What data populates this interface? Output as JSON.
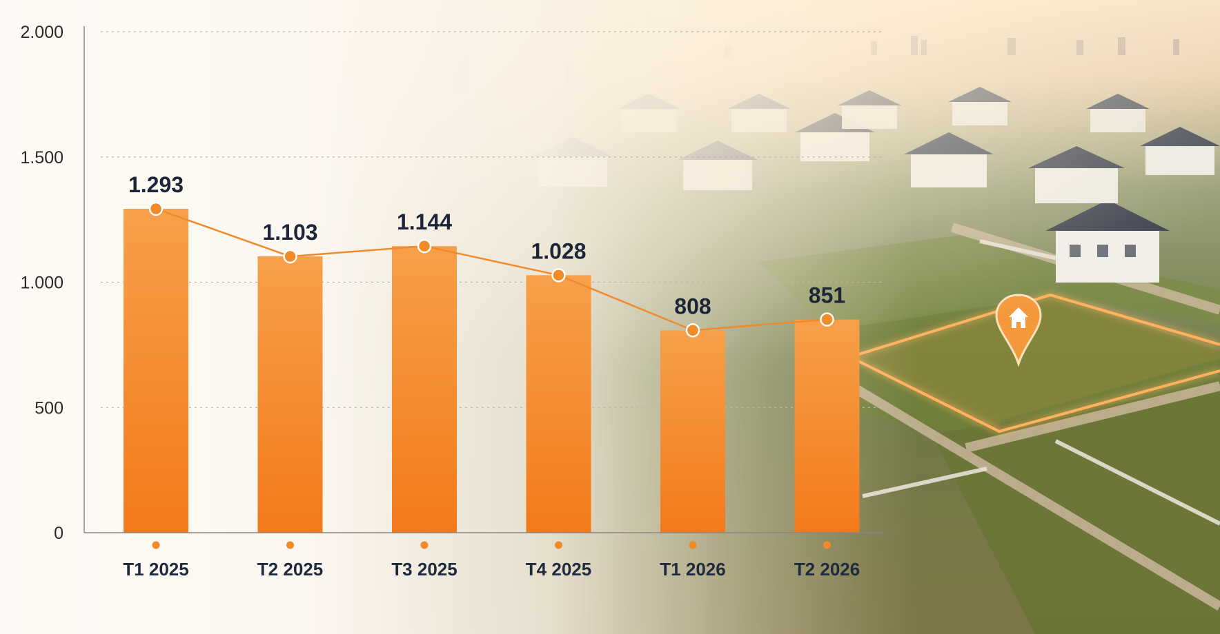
{
  "chart_data": {
    "type": "bar",
    "categories": [
      "T1 2025",
      "T2 2025",
      "T3 2025",
      "T4 2025",
      "T1 2026",
      "T2 2026"
    ],
    "values": [
      1293,
      1103,
      1144,
      1028,
      808,
      851
    ],
    "value_labels": [
      "1.293",
      "1.103",
      "1.144",
      "1.028",
      "808",
      "851"
    ],
    "overlay": "line connecting bar tops with point markers",
    "ylim": [
      0,
      2000
    ],
    "yticks": [
      0,
      500,
      1000,
      1500,
      2000
    ],
    "ytick_labels": [
      "0",
      "500",
      "1.000",
      "1.500",
      "2.000"
    ],
    "grid": "dashed horizontal",
    "legend": "none",
    "colors": {
      "bar_top": "#f7a04a",
      "bar_bottom": "#f27a1a",
      "line": "#f08a2a",
      "marker_fill": "#f28a28",
      "marker_stroke": "#ffffff",
      "label": "#1c2638"
    }
  },
  "background": {
    "description_icon": "map-pin-house-icon",
    "pin_color": "#f59a3c"
  }
}
